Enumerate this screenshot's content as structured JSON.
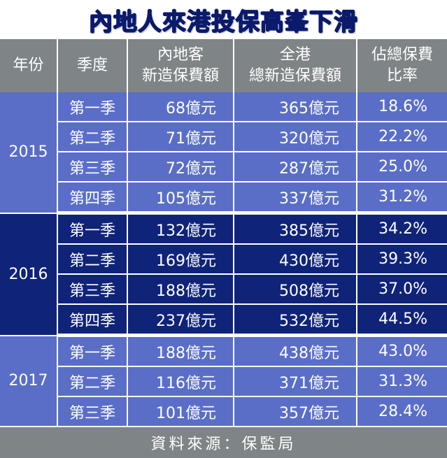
{
  "title": "內地人來港投保高峯下滑",
  "headers": [
    [
      "年份"
    ],
    [
      "季度"
    ],
    [
      "內地客",
      "新造保費額"
    ],
    [
      "全港",
      "總新造保費額"
    ],
    [
      "佔總保費",
      "比率"
    ]
  ],
  "groups": [
    {
      "year": "2015",
      "rows": [
        {
          "quarter": "第一季",
          "mainland": "68億元",
          "total": "365億元",
          "ratio": "18.6%"
        },
        {
          "quarter": "第二季",
          "mainland": "71億元",
          "total": "320億元",
          "ratio": "22.2%"
        },
        {
          "quarter": "第三季",
          "mainland": "72億元",
          "total": "287億元",
          "ratio": "25.0%"
        },
        {
          "quarter": "第四季",
          "mainland": "105億元",
          "total": "337億元",
          "ratio": "31.2%"
        }
      ]
    },
    {
      "year": "2016",
      "rows": [
        {
          "quarter": "第一季",
          "mainland": "132億元",
          "total": "385億元",
          "ratio": "34.2%"
        },
        {
          "quarter": "第二季",
          "mainland": "169億元",
          "total": "430億元",
          "ratio": "39.3%"
        },
        {
          "quarter": "第三季",
          "mainland": "188億元",
          "total": "508億元",
          "ratio": "37.0%"
        },
        {
          "quarter": "第四季",
          "mainland": "237億元",
          "total": "532億元",
          "ratio": "44.5%"
        }
      ]
    },
    {
      "year": "2017",
      "rows": [
        {
          "quarter": "第一季",
          "mainland": "188億元",
          "total": "438億元",
          "ratio": "43.0%"
        },
        {
          "quarter": "第二季",
          "mainland": "116億元",
          "total": "371億元",
          "ratio": "31.3%"
        },
        {
          "quarter": "第三季",
          "mainland": "101億元",
          "total": "357億元",
          "ratio": "28.4%"
        }
      ]
    }
  ],
  "source": "資料來源：保監局",
  "colors": {
    "title": "#0b1a6b",
    "header_bg": "#7f8486",
    "group_light": "#5a6ec8",
    "group_dark": "#0f2379"
  }
}
